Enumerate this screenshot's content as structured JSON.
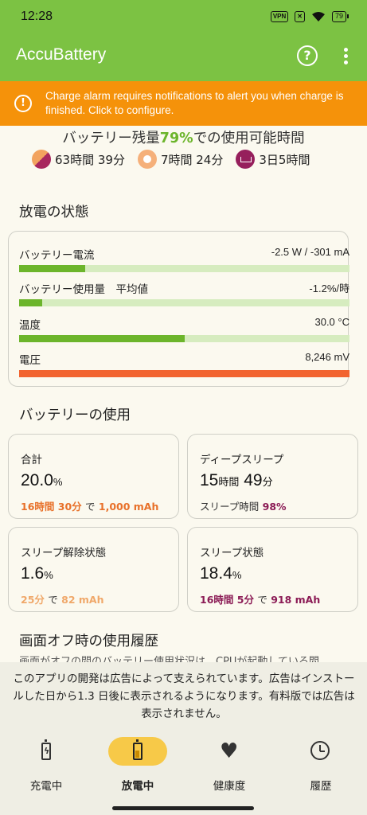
{
  "status_bar": {
    "time": "12:28",
    "vpn": "VPN",
    "battery": "79"
  },
  "app_bar": {
    "title": "AccuBattery"
  },
  "alert": {
    "text": "Charge alarm requires notifications to alert you when charge is finished. Click to configure."
  },
  "remaining": {
    "title_prefix": "バッテリー残量",
    "percent": "79%",
    "title_suffix": "での使用可能時間",
    "items": [
      {
        "icon": "mixed-usage-icon",
        "text": "63時間 39分"
      },
      {
        "icon": "screen-on-icon",
        "text": "7時間 24分"
      },
      {
        "icon": "sleep-bed-icon",
        "text": "3日5時間"
      }
    ]
  },
  "discharge": {
    "title": "放電の状態",
    "metrics": [
      {
        "label": "バッテリー電流",
        "value": "-2.5 W / -301 mA",
        "level_pct": 20,
        "color": "#6cb52b"
      },
      {
        "label": "バッテリー使用量　平均値",
        "value": "-1.2%/時",
        "level_pct": 7,
        "color": "#6cb52b"
      },
      {
        "label": "温度",
        "value": "30.0 °C",
        "level_pct": 50,
        "color": "#6cb52b"
      },
      {
        "label": "電圧",
        "value": "8,246 mV",
        "level_pct": 100,
        "color": "#f26430"
      }
    ]
  },
  "usage": {
    "title": "バッテリーの使用",
    "total": {
      "label": "合計",
      "big": "20.0",
      "unit": "%",
      "time": "16時間 30分",
      "sep": "で",
      "amount": "1,000 mAh",
      "color": "#e8712a"
    },
    "deep_sleep": {
      "label": "ディープスリープ",
      "hours": "15",
      "h_unit": "時間",
      "minutes": "49",
      "m_unit": "分",
      "sub_label": "スリープ時間",
      "sub_value": "98%",
      "color": "#8b1b55"
    },
    "awake": {
      "label": "スリープ解除状態",
      "big": "1.6",
      "unit": "%",
      "time": "25分",
      "sep": "で",
      "amount": "82 mAh",
      "color": "#f0a86a"
    },
    "sleep": {
      "label": "スリープ状態",
      "big": "18.4",
      "unit": "%",
      "time": "16時間 5分",
      "sep": "で",
      "amount": "918 mAh",
      "color": "#8b1b55"
    }
  },
  "screen_off_history": {
    "title": "画面オフ時の使用履歴",
    "peek_text": "画面がオフの間のバッテリー使用状況は、CPUが起動している間"
  },
  "ad_notice": {
    "text": "このアプリの開発は広告によって支えられています。広告はインストールした日から1.3 日後に表示されるようになります。有料版では広告は表示されません。"
  },
  "bottom_nav": [
    {
      "label": "充電中",
      "icon": "charging-icon",
      "active": false
    },
    {
      "label": "放電中",
      "icon": "discharging-icon",
      "active": true
    },
    {
      "label": "健康度",
      "icon": "heart-icon",
      "active": false
    },
    {
      "label": "履歴",
      "icon": "history-icon",
      "active": false
    }
  ]
}
